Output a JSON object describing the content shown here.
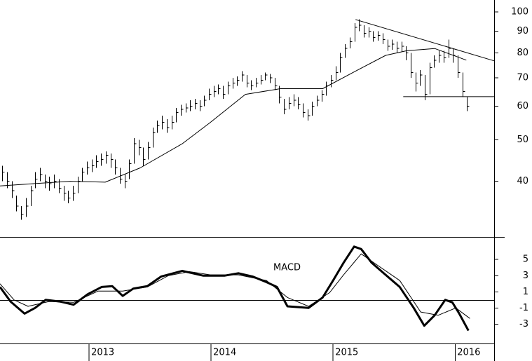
{
  "chart_data": [
    {
      "type": "hlc",
      "log_scale": true,
      "color": "#000000",
      "xlim": [
        2012.27,
        2016.32
      ],
      "ylim": [
        29.6,
        106.6
      ],
      "yticks": [
        40,
        50,
        60,
        70,
        80,
        90,
        100
      ],
      "x": [
        2012.29,
        2012.328,
        2012.367,
        2012.405,
        2012.444,
        2012.482,
        2012.521,
        2012.559,
        2012.598,
        2012.636,
        2012.675,
        2012.713,
        2012.752,
        2012.79,
        2012.828,
        2012.867,
        2012.905,
        2012.944,
        2012.982,
        2013.021,
        2013.059,
        2013.098,
        2013.136,
        2013.175,
        2013.213,
        2013.252,
        2013.29,
        2013.328,
        2013.367,
        2013.405,
        2013.444,
        2013.482,
        2013.521,
        2013.559,
        2013.598,
        2013.636,
        2013.675,
        2013.713,
        2013.752,
        2013.79,
        2013.828,
        2013.867,
        2013.905,
        2013.944,
        2013.982,
        2014.021,
        2014.059,
        2014.098,
        2014.136,
        2014.175,
        2014.213,
        2014.252,
        2014.29,
        2014.328,
        2014.367,
        2014.405,
        2014.444,
        2014.482,
        2014.521,
        2014.559,
        2014.598,
        2014.636,
        2014.675,
        2014.713,
        2014.752,
        2014.79,
        2014.828,
        2014.867,
        2014.905,
        2014.944,
        2014.982,
        2015.021,
        2015.059,
        2015.098,
        2015.136,
        2015.175,
        2015.213,
        2015.252,
        2015.29,
        2015.328,
        2015.367,
        2015.405,
        2015.444,
        2015.482,
        2015.521,
        2015.559,
        2015.598,
        2015.636,
        2015.675,
        2015.713,
        2015.752,
        2015.79,
        2015.828,
        2015.867,
        2015.905,
        2015.944,
        2015.982,
        2016.021,
        2016.059,
        2016.098
      ],
      "high": [
        43.5,
        42,
        40,
        37,
        35,
        36.5,
        39,
        42,
        43,
        41.5,
        41,
        41.5,
        40.5,
        39,
        38,
        39,
        41,
        43,
        44.5,
        45,
        46,
        46.5,
        47,
        46.5,
        45,
        43,
        41.5,
        45,
        50.5,
        50,
        48,
        49.5,
        53.5,
        55.5,
        57,
        56,
        57,
        59.5,
        60.5,
        61,
        62,
        62.5,
        62,
        63.5,
        66,
        67,
        67.5,
        67,
        68.5,
        70,
        70.5,
        72.5,
        71,
        69,
        70,
        71,
        72,
        71.5,
        70,
        67,
        62.5,
        63,
        64,
        63,
        61,
        59,
        61.5,
        63.5,
        65.5,
        68.5,
        71,
        74.5,
        80,
        84,
        87,
        94,
        96,
        93,
        92,
        90,
        90,
        89,
        86,
        86,
        85,
        85,
        83,
        80,
        72,
        73,
        71,
        76,
        79,
        81,
        81,
        86,
        82,
        79,
        72,
        63
      ],
      "low": [
        40,
        38.5,
        36.5,
        34,
        32.5,
        33,
        35,
        38.5,
        40,
        38.5,
        38,
        38.5,
        37.5,
        36,
        35.5,
        36,
        37.5,
        40,
        41.5,
        42,
        43,
        43.5,
        44,
        43,
        41.5,
        39.5,
        38.5,
        40.5,
        44,
        46,
        43.5,
        45,
        48,
        52,
        53,
        52,
        53,
        55,
        57,
        58,
        58.5,
        59,
        58.5,
        60,
        62,
        63,
        64,
        62.5,
        64,
        66,
        67,
        68.5,
        66.5,
        65.5,
        66.5,
        67.5,
        69,
        68,
        65.5,
        61,
        57.5,
        59,
        60,
        59,
        56.5,
        55.5,
        57,
        60,
        61.5,
        63.5,
        66.5,
        69,
        72,
        78,
        82,
        85,
        90,
        87,
        87,
        85,
        85.5,
        84,
        81,
        81.5,
        80,
        80.5,
        77,
        70,
        65,
        67,
        62,
        64,
        74,
        76,
        76,
        78,
        76,
        70,
        63,
        58.5
      ],
      "close": [
        42,
        40,
        38,
        35,
        33.5,
        35,
        38,
        40.5,
        41.5,
        40,
        39.5,
        40,
        38.5,
        37.5,
        36.5,
        37.5,
        40,
        42,
        43,
        43.5,
        44.5,
        45,
        46,
        45,
        43,
        40.5,
        40,
        44,
        49,
        48,
        45,
        48,
        52,
        54,
        55,
        53.5,
        55,
        58,
        59,
        59.5,
        60,
        61,
        60,
        62,
        64,
        65,
        66,
        64,
        67,
        68,
        69,
        71,
        68,
        67,
        68,
        69,
        71,
        70,
        67,
        63,
        59,
        61,
        62,
        60.5,
        58,
        57,
        60,
        62,
        64,
        67,
        69,
        72,
        78,
        82,
        85,
        92,
        93,
        89,
        90,
        87,
        88,
        86,
        83,
        84,
        82,
        83,
        80,
        72,
        68,
        71,
        64,
        74,
        77,
        79,
        78,
        82,
        79,
        72,
        65,
        60
      ],
      "moving_average": {
        "x": [
          2012.27,
          2012.557,
          2012.845,
          2013.132,
          2013.419,
          2013.764,
          2013.994,
          2014.281,
          2014.569,
          2014.914,
          2015.201,
          2015.431,
          2015.603,
          2015.833,
          2016.092
        ],
        "values": [
          39,
          39.5,
          40,
          39.8,
          43,
          49,
          55,
          64,
          66,
          66,
          73,
          79,
          81,
          82,
          77
        ]
      },
      "trendlines": [
        {
          "x": [
            2015.184,
            2016.32
          ],
          "y": [
            95.9,
            76.7
          ]
        },
        {
          "x": [
            2015.575,
            2016.32
          ],
          "y": [
            63.2,
            63.2
          ]
        }
      ]
    },
    {
      "type": "line",
      "zero_line": true,
      "xlim": [
        2012.27,
        2016.32
      ],
      "ylim": [
        -5.4,
        7.8
      ],
      "yticks": [
        -3,
        -1,
        1,
        3,
        5
      ],
      "xticks": [
        2013,
        2014,
        2015,
        2016
      ],
      "series": [
        {
          "name": "MACD",
          "color": "#000000",
          "linewidth": 3,
          "x": [
            2012.27,
            2012.356,
            2012.471,
            2012.557,
            2012.644,
            2012.759,
            2012.873,
            2012.988,
            2013.103,
            2013.19,
            2013.276,
            2013.362,
            2013.477,
            2013.592,
            2013.764,
            2013.937,
            2014.109,
            2014.224,
            2014.339,
            2014.454,
            2014.54,
            2014.626,
            2014.799,
            2014.914,
            2015.0,
            2015.086,
            2015.172,
            2015.23,
            2015.316,
            2015.431,
            2015.546,
            2015.661,
            2015.747,
            2015.833,
            2015.919,
            2015.977,
            2016.034,
            2016.109
          ],
          "values": [
            1.6,
            -0.2,
            -1.7,
            -1.0,
            0,
            -0.2,
            -0.6,
            0.7,
            1.6,
            1.7,
            0.5,
            1.4,
            1.7,
            2.9,
            3.6,
            3.0,
            3.0,
            3.3,
            2.9,
            2.2,
            1.6,
            -0.8,
            -1.0,
            0.3,
            2.4,
            4.6,
            6.6,
            6.3,
            4.6,
            3.1,
            1.6,
            -1.0,
            -3.2,
            -1.9,
            0,
            -0.3,
            -1.7,
            -3.8
          ]
        },
        {
          "color": "#000000",
          "linewidth": 1,
          "x": [
            2012.27,
            2012.385,
            2012.5,
            2012.672,
            2012.873,
            2013.075,
            2013.276,
            2013.477,
            2013.649,
            2013.822,
            2013.994,
            2014.224,
            2014.454,
            2014.626,
            2014.799,
            2014.971,
            2015.086,
            2015.23,
            2015.373,
            2015.546,
            2015.718,
            2015.862,
            2016.006,
            2016.121
          ],
          "values": [
            2.0,
            0,
            -0.8,
            -0.2,
            -0.3,
            1.1,
            1.1,
            1.6,
            3.0,
            3.5,
            3.1,
            3.1,
            2.4,
            0.3,
            -0.8,
            0.9,
            3.1,
            5.7,
            4.2,
            2.4,
            -1.5,
            -1.9,
            -1.0,
            -2.3
          ]
        }
      ]
    }
  ]
}
